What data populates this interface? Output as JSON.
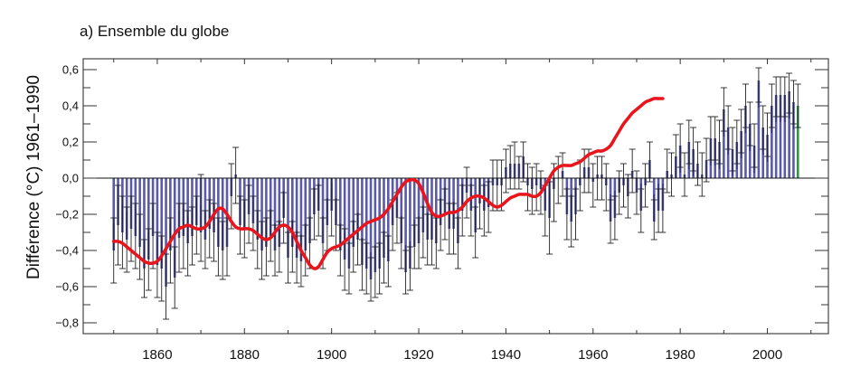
{
  "chart_data": {
    "type": "bar",
    "title": "a) Ensemble du globe",
    "xlabel": "",
    "ylabel": "Différence (°C) 1961–1990",
    "xlim": [
      1843,
      2014
    ],
    "ylim": [
      -0.86,
      0.66
    ],
    "x_ticks": [
      1860,
      1880,
      1900,
      1920,
      1940,
      1960,
      1980,
      2000
    ],
    "x_tick_labels": [
      "1860",
      "1880",
      "1900",
      "1920",
      "1940",
      "1960",
      "1980",
      "2000"
    ],
    "y_ticks": [
      0.6,
      0.4,
      0.2,
      0.0,
      -0.2,
      -0.4,
      -0.6,
      -0.8
    ],
    "y_tick_labels": [
      "0,6",
      "0,4",
      "0,2",
      "0,0",
      "−0,2",
      "−0,4",
      "−0,6",
      "−0,8"
    ],
    "grid": false,
    "legend": "none",
    "colors": {
      "bar": "#5a5aa8",
      "bar_dark": "#1c1c6e",
      "last_bar": "#2a9a3a",
      "error": "#222222",
      "smooth": "#e8161c",
      "axis": "#333333"
    },
    "start_year": 1850,
    "series": [
      {
        "name": "Annual anomaly",
        "values": [
          -0.4,
          -0.26,
          -0.3,
          -0.34,
          -0.28,
          -0.32,
          -0.38,
          -0.5,
          -0.45,
          -0.32,
          -0.48,
          -0.5,
          -0.6,
          -0.4,
          -0.55,
          -0.33,
          -0.32,
          -0.36,
          -0.32,
          -0.26,
          -0.3,
          -0.34,
          -0.28,
          -0.3,
          -0.38,
          -0.4,
          -0.38,
          -0.1,
          0.02,
          -0.26,
          -0.28,
          -0.2,
          -0.25,
          -0.34,
          -0.4,
          -0.38,
          -0.32,
          -0.4,
          -0.38,
          -0.22,
          -0.44,
          -0.38,
          -0.44,
          -0.46,
          -0.4,
          -0.36,
          -0.2,
          -0.18,
          -0.36,
          -0.26,
          -0.18,
          -0.26,
          -0.4,
          -0.45,
          -0.5,
          -0.38,
          -0.34,
          -0.48,
          -0.5,
          -0.56,
          -0.52,
          -0.5,
          -0.44,
          -0.46,
          -0.26,
          -0.22,
          -0.36,
          -0.52,
          -0.5,
          -0.38,
          -0.36,
          -0.3,
          -0.34,
          -0.34,
          -0.36,
          -0.26,
          -0.2,
          -0.28,
          -0.28,
          -0.36,
          -0.18,
          -0.08,
          -0.18,
          -0.3,
          -0.14,
          -0.18,
          -0.16,
          -0.04,
          -0.04,
          -0.04,
          0.06,
          0.08,
          0.08,
          0.08,
          0.12,
          -0.04,
          -0.06,
          -0.04,
          -0.06,
          -0.18,
          -0.22,
          -0.06,
          0.0,
          0.04,
          -0.2,
          -0.24,
          -0.2,
          -0.04,
          0.06,
          0.06,
          -0.02,
          0.02,
          0.02,
          -0.04,
          -0.24,
          -0.22,
          -0.08,
          -0.04,
          -0.1,
          0.04,
          -0.08,
          -0.18,
          -0.04,
          0.1,
          -0.24,
          -0.18,
          -0.18,
          0.04,
          0.02,
          0.12,
          0.18,
          0.02,
          0.2,
          0.16,
          0.08,
          0.02,
          0.1,
          0.22,
          0.22,
          0.2,
          0.38,
          0.28,
          0.16,
          0.2,
          0.26,
          0.4,
          0.3,
          0.18,
          0.54,
          0.28,
          0.24,
          0.4,
          0.46,
          0.46,
          0.46,
          0.48,
          0.42,
          0.4
        ]
      },
      {
        "name": "Uncertainty range (low)",
        "values": [
          -0.58,
          -0.48,
          -0.5,
          -0.52,
          -0.46,
          -0.5,
          -0.56,
          -0.66,
          -0.62,
          -0.5,
          -0.66,
          -0.68,
          -0.78,
          -0.58,
          -0.72,
          -0.52,
          -0.5,
          -0.54,
          -0.48,
          -0.42,
          -0.46,
          -0.5,
          -0.44,
          -0.46,
          -0.54,
          -0.56,
          -0.54,
          -0.28,
          -0.14,
          -0.42,
          -0.44,
          -0.36,
          -0.4,
          -0.5,
          -0.56,
          -0.54,
          -0.46,
          -0.54,
          -0.52,
          -0.36,
          -0.58,
          -0.52,
          -0.58,
          -0.6,
          -0.54,
          -0.5,
          -0.34,
          -0.32,
          -0.5,
          -0.4,
          -0.32,
          -0.4,
          -0.54,
          -0.62,
          -0.64,
          -0.52,
          -0.48,
          -0.62,
          -0.64,
          -0.68,
          -0.66,
          -0.64,
          -0.58,
          -0.6,
          -0.4,
          -0.36,
          -0.5,
          -0.64,
          -0.62,
          -0.5,
          -0.5,
          -0.44,
          -0.48,
          -0.48,
          -0.5,
          -0.4,
          -0.34,
          -0.42,
          -0.42,
          -0.5,
          -0.32,
          -0.22,
          -0.32,
          -0.44,
          -0.28,
          -0.32,
          -0.3,
          -0.18,
          -0.18,
          -0.18,
          -0.08,
          -0.06,
          -0.06,
          -0.06,
          -0.02,
          -0.18,
          -0.2,
          -0.18,
          -0.2,
          -0.32,
          -0.42,
          -0.24,
          -0.14,
          -0.1,
          -0.34,
          -0.38,
          -0.34,
          -0.18,
          -0.08,
          -0.08,
          -0.16,
          -0.12,
          -0.12,
          -0.18,
          -0.36,
          -0.34,
          -0.2,
          -0.16,
          -0.22,
          -0.08,
          -0.2,
          -0.3,
          -0.16,
          -0.02,
          -0.34,
          -0.3,
          -0.3,
          -0.08,
          -0.1,
          0.0,
          0.06,
          -0.1,
          0.08,
          0.04,
          -0.04,
          -0.1,
          -0.02,
          0.1,
          0.1,
          0.08,
          0.26,
          0.16,
          0.04,
          0.08,
          0.14,
          0.28,
          0.18,
          0.06,
          0.42,
          0.16,
          0.12,
          0.28,
          0.34,
          0.34,
          0.34,
          0.36,
          0.3,
          0.28
        ]
      },
      {
        "name": "Uncertainty range (high)",
        "values": [
          -0.22,
          -0.04,
          -0.1,
          -0.16,
          -0.1,
          -0.14,
          -0.2,
          -0.34,
          -0.28,
          -0.14,
          -0.3,
          -0.32,
          -0.42,
          -0.22,
          -0.38,
          -0.14,
          -0.14,
          -0.18,
          -0.16,
          -0.1,
          0.02,
          -0.18,
          -0.12,
          -0.14,
          -0.22,
          -0.24,
          -0.22,
          0.08,
          0.17,
          -0.1,
          -0.12,
          -0.04,
          -0.1,
          -0.18,
          -0.24,
          -0.22,
          -0.18,
          -0.26,
          -0.24,
          -0.08,
          -0.3,
          -0.24,
          -0.3,
          -0.32,
          -0.26,
          -0.22,
          -0.06,
          -0.04,
          -0.22,
          -0.12,
          0.0,
          -0.12,
          -0.26,
          -0.28,
          -0.36,
          -0.24,
          -0.2,
          -0.34,
          -0.36,
          -0.44,
          -0.38,
          -0.36,
          -0.3,
          -0.32,
          -0.12,
          -0.08,
          -0.22,
          -0.4,
          -0.38,
          -0.26,
          -0.22,
          -0.16,
          -0.2,
          -0.2,
          -0.22,
          -0.12,
          -0.06,
          -0.14,
          -0.14,
          -0.22,
          -0.04,
          0.06,
          -0.04,
          -0.16,
          0.0,
          -0.04,
          -0.02,
          0.1,
          0.1,
          0.1,
          0.16,
          0.18,
          0.2,
          0.12,
          0.2,
          0.08,
          0.06,
          0.08,
          0.04,
          -0.04,
          -0.02,
          0.08,
          0.12,
          0.14,
          -0.06,
          -0.1,
          -0.06,
          0.1,
          0.16,
          0.16,
          0.08,
          0.12,
          0.12,
          0.08,
          -0.12,
          -0.1,
          0.04,
          0.08,
          0.02,
          0.16,
          0.04,
          -0.06,
          0.08,
          0.2,
          -0.12,
          -0.06,
          -0.06,
          0.16,
          0.14,
          0.24,
          0.3,
          0.14,
          0.32,
          0.28,
          0.2,
          0.14,
          0.22,
          0.34,
          0.34,
          0.32,
          0.5,
          0.4,
          0.28,
          0.32,
          0.38,
          0.52,
          0.42,
          0.3,
          0.61,
          0.4,
          0.36,
          0.52,
          0.56,
          0.56,
          0.56,
          0.58,
          0.54,
          0.52
        ]
      },
      {
        "name": "Smoothed",
        "values": [
          -0.35,
          -0.35,
          -0.36,
          -0.38,
          -0.4,
          -0.42,
          -0.44,
          -0.46,
          -0.47,
          -0.47,
          -0.46,
          -0.43,
          -0.39,
          -0.35,
          -0.31,
          -0.28,
          -0.27,
          -0.26,
          -0.27,
          -0.28,
          -0.28,
          -0.27,
          -0.24,
          -0.2,
          -0.17,
          -0.17,
          -0.2,
          -0.24,
          -0.27,
          -0.28,
          -0.28,
          -0.28,
          -0.29,
          -0.31,
          -0.33,
          -0.34,
          -0.33,
          -0.3,
          -0.27,
          -0.26,
          -0.27,
          -0.3,
          -0.35,
          -0.4,
          -0.44,
          -0.48,
          -0.5,
          -0.49,
          -0.45,
          -0.41,
          -0.39,
          -0.38,
          -0.37,
          -0.35,
          -0.33,
          -0.31,
          -0.29,
          -0.27,
          -0.25,
          -0.24,
          -0.23,
          -0.22,
          -0.2,
          -0.17,
          -0.13,
          -0.09,
          -0.05,
          -0.02,
          -0.01,
          -0.01,
          -0.03,
          -0.08,
          -0.14,
          -0.19,
          -0.21,
          -0.21,
          -0.2,
          -0.19,
          -0.19,
          -0.18,
          -0.16,
          -0.13,
          -0.11,
          -0.1,
          -0.1,
          -0.11,
          -0.13,
          -0.15,
          -0.16,
          -0.15,
          -0.13,
          -0.11,
          -0.1,
          -0.09,
          -0.09,
          -0.09,
          -0.1,
          -0.1,
          -0.08,
          -0.04,
          0.0,
          0.04,
          0.06,
          0.07,
          0.07,
          0.07,
          0.08,
          0.09,
          0.11,
          0.13,
          0.14,
          0.15,
          0.15,
          0.16,
          0.18,
          0.22,
          0.26,
          0.3,
          0.33,
          0.36,
          0.38,
          0.4,
          0.42,
          0.43,
          0.44,
          0.44,
          0.44
        ]
      }
    ]
  }
}
